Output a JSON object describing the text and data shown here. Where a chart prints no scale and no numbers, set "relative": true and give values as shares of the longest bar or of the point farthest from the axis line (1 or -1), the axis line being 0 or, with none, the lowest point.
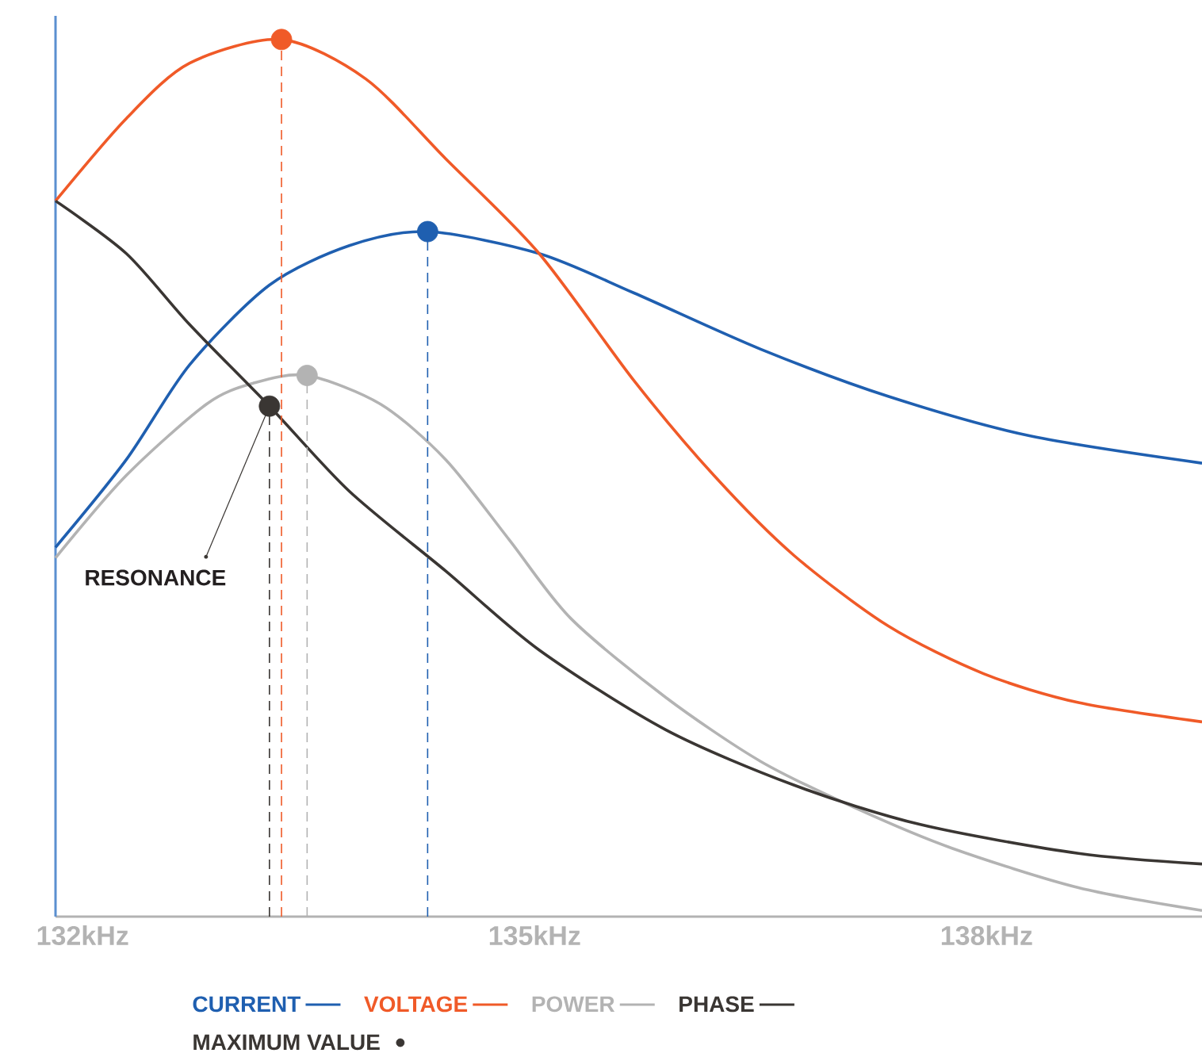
{
  "chart_data": {
    "type": "line",
    "relative": true,
    "xlim": [
      131.82,
      139.43
    ],
    "xticks": [
      {
        "value": 132,
        "label": "132kHz"
      },
      {
        "value": 135,
        "label": "135kHz"
      },
      {
        "value": 138,
        "label": "138kHz"
      }
    ],
    "legend": "bottom",
    "annotations": [
      {
        "text": "RESONANCE",
        "x": 133.24,
        "y": 0.582
      }
    ],
    "series": [
      {
        "name": "CURRENT",
        "color": "#1f5fb0",
        "x": [
          131.82,
          132.29,
          132.71,
          133.24,
          133.77,
          134.29,
          135.03,
          135.66,
          136.5,
          137.35,
          138.29,
          139.43
        ],
        "values": [
          0.421,
          0.521,
          0.629,
          0.72,
          0.765,
          0.781,
          0.756,
          0.711,
          0.647,
          0.593,
          0.548,
          0.517
        ]
      },
      {
        "name": "VOLTAGE",
        "color": "#f05a28",
        "x": [
          131.82,
          132.29,
          132.71,
          133.32,
          133.88,
          134.41,
          135.03,
          135.66,
          136.19,
          136.72,
          137.35,
          137.98,
          138.61,
          139.43
        ],
        "values": [
          0.816,
          0.91,
          0.973,
          1.0,
          0.955,
          0.864,
          0.756,
          0.611,
          0.503,
          0.412,
          0.331,
          0.277,
          0.244,
          0.222
        ]
      },
      {
        "name": "POWER",
        "color": "#b3b3b3",
        "x": [
          131.82,
          132.29,
          132.82,
          133.13,
          133.49,
          133.98,
          134.41,
          134.83,
          135.24,
          135.87,
          136.5,
          137.14,
          137.77,
          138.61,
          139.43
        ],
        "values": [
          0.409,
          0.503,
          0.584,
          0.608,
          0.617,
          0.584,
          0.521,
          0.43,
          0.34,
          0.25,
          0.177,
          0.123,
          0.078,
          0.033,
          0.007
        ]
      },
      {
        "name": "PHASE",
        "color": "#3a3633",
        "x": [
          131.82,
          132.29,
          132.71,
          133.24,
          133.77,
          134.41,
          135.03,
          135.87,
          136.72,
          137.56,
          138.61,
          139.43
        ],
        "values": [
          0.816,
          0.756,
          0.675,
          0.582,
          0.485,
          0.394,
          0.304,
          0.213,
          0.15,
          0.105,
          0.072,
          0.06
        ]
      },
      {
        "name": "MAXIMUM VALUE",
        "type": "lollipop",
        "marker": "circle",
        "line_style": "dashed",
        "color": "#3a3633",
        "x": [
          133.32,
          134.29,
          133.49,
          133.24
        ],
        "values": [
          1.0,
          0.781,
          0.617,
          0.582
        ],
        "colors": [
          "#f05a28",
          "#1f5fb0",
          "#b3b3b3",
          "#3a3633"
        ]
      }
    ]
  }
}
